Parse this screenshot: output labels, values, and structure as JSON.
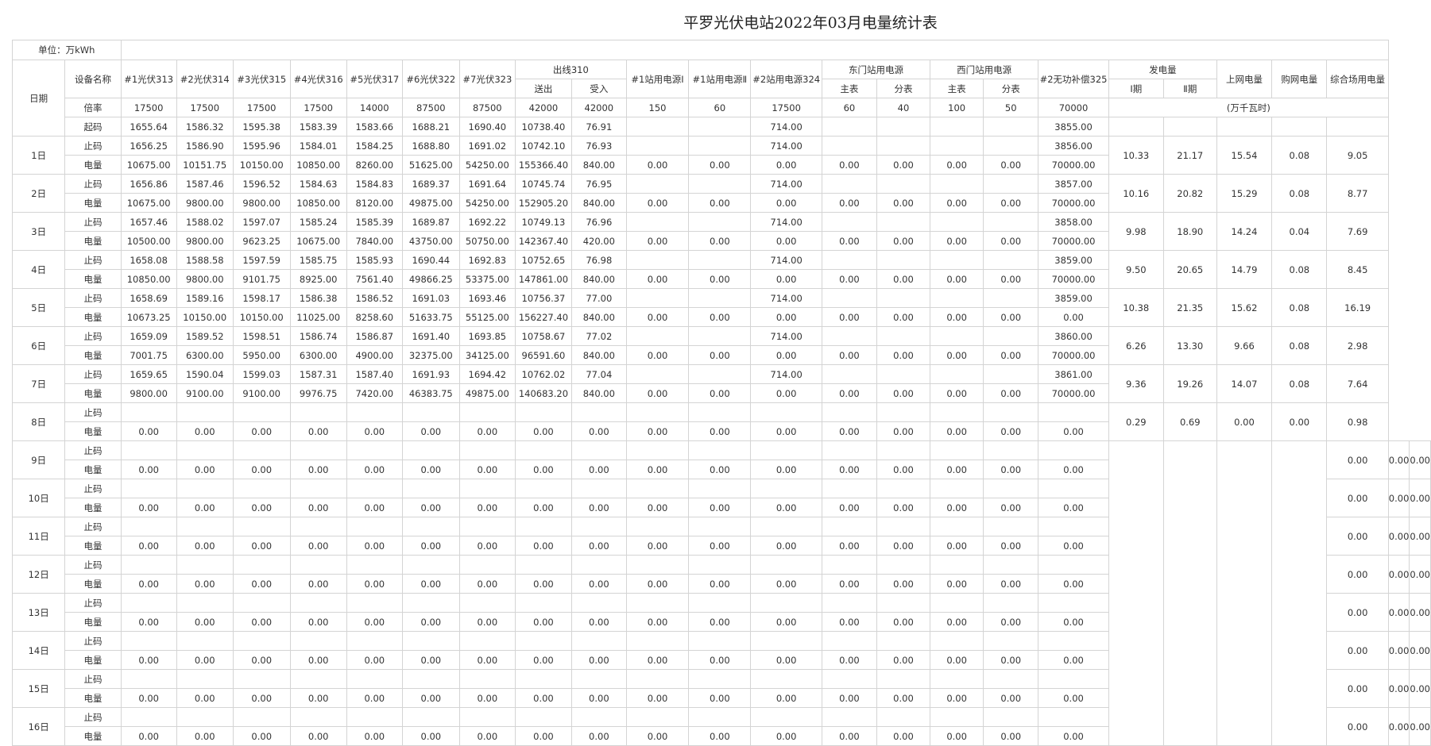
{
  "title": "平罗光伏电站2022年03月电量统计表",
  "unit_label": "单位：万kWh",
  "header": {
    "date": "日期",
    "device_name": "设备名称",
    "pv": [
      "#1光伏313",
      "#2光伏314",
      "#3光伏315",
      "#4光伏316",
      "#5光伏317",
      "#6光伏322",
      "#7光伏323"
    ],
    "outline": "出线310",
    "outline_sub": [
      "送出",
      "受入"
    ],
    "station1_i": "#1站用电源Ⅰ",
    "station1_ii": "#1站用电源Ⅱ",
    "station2": "#2站用电源324",
    "east": "东门站用电源",
    "east_sub": [
      "主表",
      "分表"
    ],
    "west": "西门站用电源",
    "west_sub": [
      "主表",
      "分表"
    ],
    "svg": "#2无功补偿325",
    "gen": "发电量",
    "gen_sub": [
      "Ⅰ期",
      "Ⅱ期"
    ],
    "grid": "上网电量",
    "buy": "购网电量",
    "plant": "综合场用电量"
  },
  "ratio_label": "倍率",
  "ratios": [
    "17500",
    "17500",
    "17500",
    "17500",
    "14000",
    "87500",
    "87500",
    "42000",
    "42000",
    "150",
    "60",
    "17500",
    "60",
    "40",
    "100",
    "50",
    "70000"
  ],
  "ratio_unit": "(万千瓦时)",
  "start_label": "起码",
  "start": [
    "1655.64",
    "1586.32",
    "1595.38",
    "1583.39",
    "1583.66",
    "1688.21",
    "1690.40",
    "10738.40",
    "76.91",
    "",
    "",
    "714.00",
    "",
    "",
    "",
    "",
    "3855.00"
  ],
  "stop_label": "止码",
  "energy_label": "电量",
  "days": [
    {
      "day": "1日",
      "stop": [
        "1656.25",
        "1586.90",
        "1595.96",
        "1584.01",
        "1584.25",
        "1688.80",
        "1691.02",
        "10742.10",
        "76.93",
        "",
        "",
        "714.00",
        "",
        "",
        "",
        "",
        "3856.00"
      ],
      "energy": [
        "10675.00",
        "10151.75",
        "10150.00",
        "10850.00",
        "8260.00",
        "51625.00",
        "54250.00",
        "155366.40",
        "840.00",
        "0.00",
        "0.00",
        "0.00",
        "0.00",
        "0.00",
        "0.00",
        "0.00",
        "70000.00"
      ],
      "summary": [
        "10.33",
        "21.17",
        "15.54",
        "0.08",
        "9.05"
      ]
    },
    {
      "day": "2日",
      "stop": [
        "1656.86",
        "1587.46",
        "1596.52",
        "1584.63",
        "1584.83",
        "1689.37",
        "1691.64",
        "10745.74",
        "76.95",
        "",
        "",
        "714.00",
        "",
        "",
        "",
        "",
        "3857.00"
      ],
      "energy": [
        "10675.00",
        "9800.00",
        "9800.00",
        "10850.00",
        "8120.00",
        "49875.00",
        "54250.00",
        "152905.20",
        "840.00",
        "0.00",
        "0.00",
        "0.00",
        "0.00",
        "0.00",
        "0.00",
        "0.00",
        "70000.00"
      ],
      "summary": [
        "10.16",
        "20.82",
        "15.29",
        "0.08",
        "8.77"
      ]
    },
    {
      "day": "3日",
      "stop": [
        "1657.46",
        "1588.02",
        "1597.07",
        "1585.24",
        "1585.39",
        "1689.87",
        "1692.22",
        "10749.13",
        "76.96",
        "",
        "",
        "714.00",
        "",
        "",
        "",
        "",
        "3858.00"
      ],
      "energy": [
        "10500.00",
        "9800.00",
        "9623.25",
        "10675.00",
        "7840.00",
        "43750.00",
        "50750.00",
        "142367.40",
        "420.00",
        "0.00",
        "0.00",
        "0.00",
        "0.00",
        "0.00",
        "0.00",
        "0.00",
        "70000.00"
      ],
      "summary": [
        "9.98",
        "18.90",
        "14.24",
        "0.04",
        "7.69"
      ]
    },
    {
      "day": "4日",
      "stop": [
        "1658.08",
        "1588.58",
        "1597.59",
        "1585.75",
        "1585.93",
        "1690.44",
        "1692.83",
        "10752.65",
        "76.98",
        "",
        "",
        "714.00",
        "",
        "",
        "",
        "",
        "3859.00"
      ],
      "energy": [
        "10850.00",
        "9800.00",
        "9101.75",
        "8925.00",
        "7561.40",
        "49866.25",
        "53375.00",
        "147861.00",
        "840.00",
        "0.00",
        "0.00",
        "0.00",
        "0.00",
        "0.00",
        "0.00",
        "0.00",
        "70000.00"
      ],
      "summary": [
        "9.50",
        "20.65",
        "14.79",
        "0.08",
        "8.45"
      ]
    },
    {
      "day": "5日",
      "stop": [
        "1658.69",
        "1589.16",
        "1598.17",
        "1586.38",
        "1586.52",
        "1691.03",
        "1693.46",
        "10756.37",
        "77.00",
        "",
        "",
        "714.00",
        "",
        "",
        "",
        "",
        "3859.00"
      ],
      "energy": [
        "10673.25",
        "10150.00",
        "10150.00",
        "11025.00",
        "8258.60",
        "51633.75",
        "55125.00",
        "156227.40",
        "840.00",
        "0.00",
        "0.00",
        "0.00",
        "0.00",
        "0.00",
        "0.00",
        "0.00",
        "0.00"
      ],
      "summary": [
        "10.38",
        "21.35",
        "15.62",
        "0.08",
        "16.19"
      ]
    },
    {
      "day": "6日",
      "stop": [
        "1659.09",
        "1589.52",
        "1598.51",
        "1586.74",
        "1586.87",
        "1691.40",
        "1693.85",
        "10758.67",
        "77.02",
        "",
        "",
        "714.00",
        "",
        "",
        "",
        "",
        "3860.00"
      ],
      "energy": [
        "7001.75",
        "6300.00",
        "5950.00",
        "6300.00",
        "4900.00",
        "32375.00",
        "34125.00",
        "96591.60",
        "840.00",
        "0.00",
        "0.00",
        "0.00",
        "0.00",
        "0.00",
        "0.00",
        "0.00",
        "70000.00"
      ],
      "summary": [
        "6.26",
        "13.30",
        "9.66",
        "0.08",
        "2.98"
      ]
    },
    {
      "day": "7日",
      "stop": [
        "1659.65",
        "1590.04",
        "1599.03",
        "1587.31",
        "1587.40",
        "1691.93",
        "1694.42",
        "10762.02",
        "77.04",
        "",
        "",
        "714.00",
        "",
        "",
        "",
        "",
        "3861.00"
      ],
      "energy": [
        "9800.00",
        "9100.00",
        "9100.00",
        "9976.75",
        "7420.00",
        "46383.75",
        "49875.00",
        "140683.20",
        "840.00",
        "0.00",
        "0.00",
        "0.00",
        "0.00",
        "0.00",
        "0.00",
        "0.00",
        "70000.00"
      ],
      "summary": [
        "9.36",
        "19.26",
        "14.07",
        "0.08",
        "7.64"
      ]
    },
    {
      "day": "8日",
      "stop": [
        "",
        "",
        "",
        "",
        "",
        "",
        "",
        "",
        "",
        "",
        "",
        "",
        "",
        "",
        "",
        "",
        ""
      ],
      "energy": [
        "0.00",
        "0.00",
        "0.00",
        "0.00",
        "0.00",
        "0.00",
        "0.00",
        "0.00",
        "0.00",
        "0.00",
        "0.00",
        "0.00",
        "0.00",
        "0.00",
        "0.00",
        "0.00",
        "0.00"
      ],
      "summary": [
        "0.29",
        "0.69",
        "0.00",
        "0.00",
        "0.98"
      ]
    },
    {
      "day": "9日",
      "stop": [
        "",
        "",
        "",
        "",
        "",
        "",
        "",
        "",
        "",
        "",
        "",
        "",
        "",
        "",
        "",
        "",
        ""
      ],
      "energy": [
        "0.00",
        "0.00",
        "0.00",
        "0.00",
        "0.00",
        "0.00",
        "0.00",
        "0.00",
        "0.00",
        "0.00",
        "0.00",
        "0.00",
        "0.00",
        "0.00",
        "0.00",
        "0.00",
        "0.00"
      ],
      "summary": [
        null,
        null,
        "0.00",
        "0.00",
        "0.00"
      ]
    },
    {
      "day": "10日",
      "stop": [
        "",
        "",
        "",
        "",
        "",
        "",
        "",
        "",
        "",
        "",
        "",
        "",
        "",
        "",
        "",
        "",
        ""
      ],
      "energy": [
        "0.00",
        "0.00",
        "0.00",
        "0.00",
        "0.00",
        "0.00",
        "0.00",
        "0.00",
        "0.00",
        "0.00",
        "0.00",
        "0.00",
        "0.00",
        "0.00",
        "0.00",
        "0.00",
        "0.00"
      ],
      "summary": [
        null,
        null,
        "0.00",
        "0.00",
        "0.00"
      ]
    },
    {
      "day": "11日",
      "stop": [
        "",
        "",
        "",
        "",
        "",
        "",
        "",
        "",
        "",
        "",
        "",
        "",
        "",
        "",
        "",
        "",
        ""
      ],
      "energy": [
        "0.00",
        "0.00",
        "0.00",
        "0.00",
        "0.00",
        "0.00",
        "0.00",
        "0.00",
        "0.00",
        "0.00",
        "0.00",
        "0.00",
        "0.00",
        "0.00",
        "0.00",
        "0.00",
        "0.00"
      ],
      "summary": [
        null,
        null,
        "0.00",
        "0.00",
        "0.00"
      ]
    },
    {
      "day": "12日",
      "stop": [
        "",
        "",
        "",
        "",
        "",
        "",
        "",
        "",
        "",
        "",
        "",
        "",
        "",
        "",
        "",
        "",
        ""
      ],
      "energy": [
        "0.00",
        "0.00",
        "0.00",
        "0.00",
        "0.00",
        "0.00",
        "0.00",
        "0.00",
        "0.00",
        "0.00",
        "0.00",
        "0.00",
        "0.00",
        "0.00",
        "0.00",
        "0.00",
        "0.00"
      ],
      "summary": [
        null,
        null,
        "0.00",
        "0.00",
        "0.00"
      ]
    },
    {
      "day": "13日",
      "stop": [
        "",
        "",
        "",
        "",
        "",
        "",
        "",
        "",
        "",
        "",
        "",
        "",
        "",
        "",
        "",
        "",
        ""
      ],
      "energy": [
        "0.00",
        "0.00",
        "0.00",
        "0.00",
        "0.00",
        "0.00",
        "0.00",
        "0.00",
        "0.00",
        "0.00",
        "0.00",
        "0.00",
        "0.00",
        "0.00",
        "0.00",
        "0.00",
        "0.00"
      ],
      "summary": [
        null,
        null,
        "0.00",
        "0.00",
        "0.00"
      ]
    },
    {
      "day": "14日",
      "stop": [
        "",
        "",
        "",
        "",
        "",
        "",
        "",
        "",
        "",
        "",
        "",
        "",
        "",
        "",
        "",
        "",
        ""
      ],
      "energy": [
        "0.00",
        "0.00",
        "0.00",
        "0.00",
        "0.00",
        "0.00",
        "0.00",
        "0.00",
        "0.00",
        "0.00",
        "0.00",
        "0.00",
        "0.00",
        "0.00",
        "0.00",
        "0.00",
        "0.00"
      ],
      "summary": [
        null,
        null,
        "0.00",
        "0.00",
        "0.00"
      ]
    },
    {
      "day": "15日",
      "stop": [
        "",
        "",
        "",
        "",
        "",
        "",
        "",
        "",
        "",
        "",
        "",
        "",
        "",
        "",
        "",
        "",
        ""
      ],
      "energy": [
        "0.00",
        "0.00",
        "0.00",
        "0.00",
        "0.00",
        "0.00",
        "0.00",
        "0.00",
        "0.00",
        "0.00",
        "0.00",
        "0.00",
        "0.00",
        "0.00",
        "0.00",
        "0.00",
        "0.00"
      ],
      "summary": [
        null,
        null,
        "0.00",
        "0.00",
        "0.00"
      ]
    },
    {
      "day": "16日",
      "stop": [
        "",
        "",
        "",
        "",
        "",
        "",
        "",
        "",
        "",
        "",
        "",
        "",
        "",
        "",
        "",
        "",
        ""
      ],
      "energy": [
        "0.00",
        "0.00",
        "0.00",
        "0.00",
        "0.00",
        "0.00",
        "0.00",
        "0.00",
        "0.00",
        "0.00",
        "0.00",
        "0.00",
        "0.00",
        "0.00",
        "0.00",
        "0.00",
        "0.00"
      ],
      "summary": [
        null,
        null,
        "0.00",
        "0.00",
        "0.00"
      ]
    }
  ]
}
